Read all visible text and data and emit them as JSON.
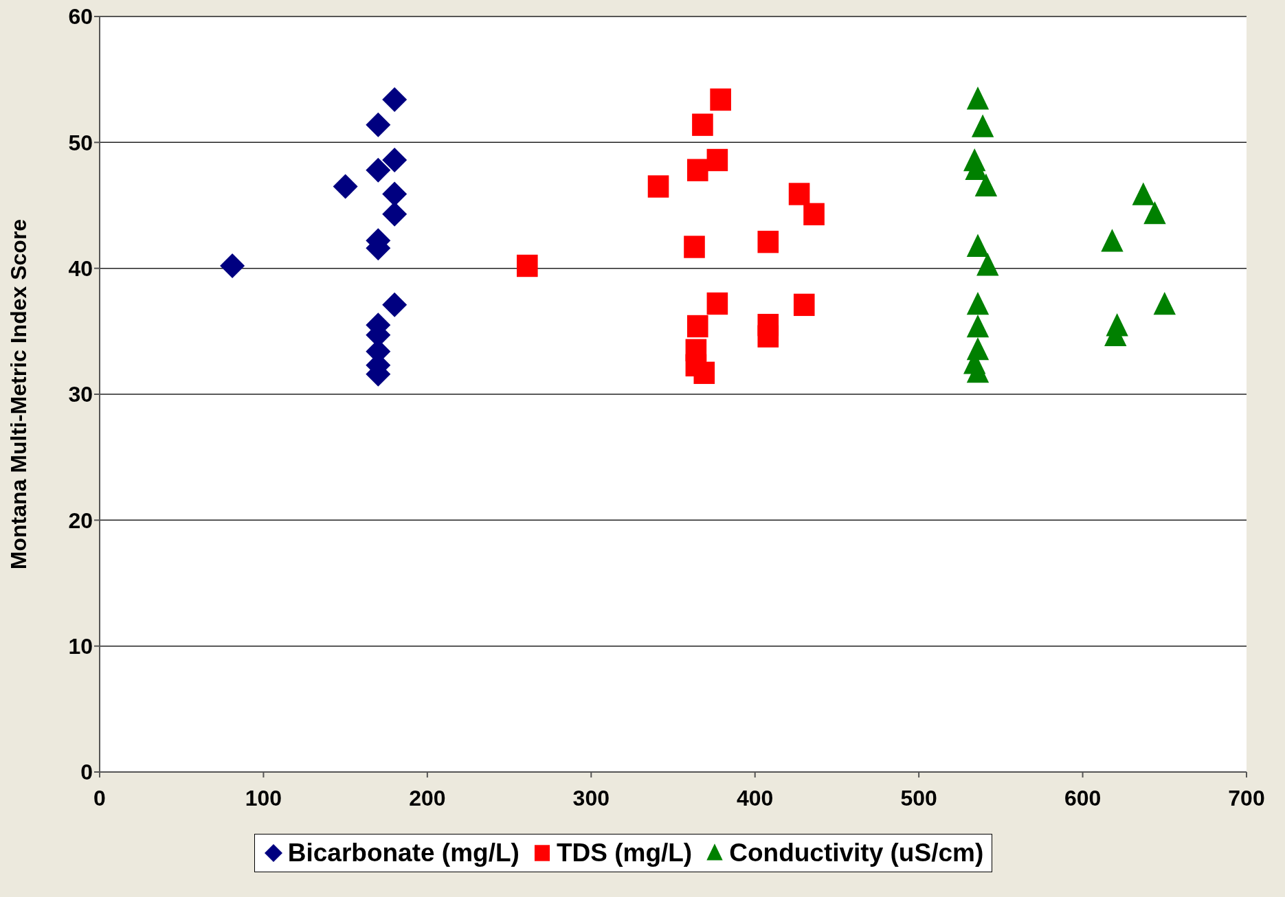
{
  "chart_data": {
    "type": "scatter",
    "ylabel": "Montana Multi-Metric Index Score",
    "xlim": [
      0,
      700
    ],
    "xticks": [
      0,
      100,
      200,
      300,
      400,
      500,
      600,
      700
    ],
    "ylim": [
      0,
      60
    ],
    "yticks": [
      0,
      10,
      20,
      30,
      40,
      50,
      60
    ],
    "grid": "y",
    "legend": "bottom",
    "series": [
      {
        "name": "Bicarbonate (mg/L)",
        "color": "#000080",
        "marker": "diamond",
        "x": [
          81,
          150,
          170,
          180,
          170,
          180,
          180,
          180,
          170,
          170,
          180,
          170,
          170,
          170,
          170,
          170
        ],
        "values": [
          40.2,
          46.5,
          51.4,
          53.4,
          47.8,
          48.6,
          45.9,
          44.3,
          42.2,
          41.6,
          37.1,
          35.5,
          34.7,
          33.4,
          32.3,
          31.6
        ]
      },
      {
        "name": "TDS (mg/L)",
        "color": "#ff0000",
        "marker": "square",
        "x": [
          261,
          341,
          368,
          379,
          365,
          377,
          427,
          436,
          408,
          363,
          377,
          430,
          365,
          364,
          364,
          369,
          408,
          408
        ],
        "values": [
          40.2,
          46.5,
          51.4,
          53.4,
          47.8,
          48.6,
          45.9,
          44.3,
          42.1,
          41.7,
          37.2,
          37.1,
          35.4,
          33.5,
          32.3,
          31.7,
          34.6,
          35.5
        ]
      },
      {
        "name": "Conductivity (uS/cm)",
        "color": "#008000",
        "marker": "triangle",
        "x": [
          536,
          539,
          534,
          535,
          541,
          637,
          644,
          618,
          536,
          542,
          650,
          536,
          621,
          620,
          536,
          536,
          534,
          536
        ],
        "values": [
          53.4,
          51.2,
          48.5,
          47.8,
          46.5,
          45.8,
          44.3,
          42.1,
          41.7,
          40.2,
          37.1,
          37.1,
          35.4,
          34.6,
          35.3,
          33.5,
          32.4,
          31.7
        ]
      }
    ]
  }
}
